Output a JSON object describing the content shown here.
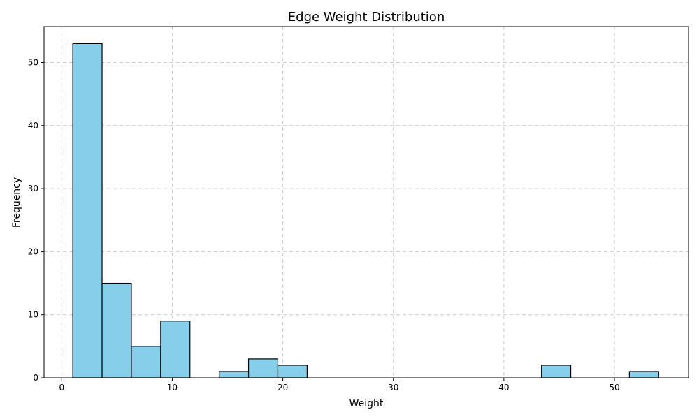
{
  "chart_data": {
    "type": "bar",
    "title": "Edge Weight Distribution",
    "xlabel": "Weight",
    "ylabel": "Frequency",
    "xlim": [
      -1.6,
      56.7
    ],
    "ylim": [
      0,
      55.7
    ],
    "xticks": [
      0,
      10,
      20,
      30,
      40,
      50
    ],
    "yticks": [
      0,
      10,
      20,
      30,
      40,
      50
    ],
    "grid": true,
    "bar_color": "#87CEEB",
    "edge_color": "#000000",
    "bins": [
      {
        "x0": 1.0,
        "x1": 3.65,
        "count": 53
      },
      {
        "x0": 3.65,
        "x1": 6.3,
        "count": 15
      },
      {
        "x0": 6.3,
        "x1": 8.95,
        "count": 5
      },
      {
        "x0": 8.95,
        "x1": 11.6,
        "count": 9
      },
      {
        "x0": 14.25,
        "x1": 16.9,
        "count": 1
      },
      {
        "x0": 16.9,
        "x1": 19.55,
        "count": 3
      },
      {
        "x0": 19.55,
        "x1": 22.2,
        "count": 2
      },
      {
        "x0": 43.4,
        "x1": 46.05,
        "count": 2
      },
      {
        "x0": 51.35,
        "x1": 54.0,
        "count": 1
      }
    ]
  }
}
